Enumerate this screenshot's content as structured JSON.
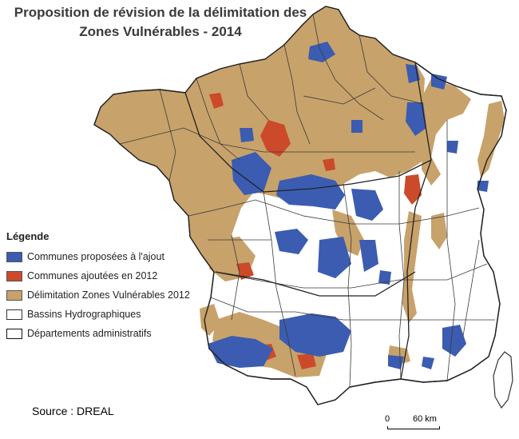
{
  "title": {
    "line1": "Proposition de révision de la délimitation des",
    "line2": "Zones Vulnérables - 2014"
  },
  "legend": {
    "title": "Légende",
    "items": [
      {
        "label": "Communes proposées à l'ajout",
        "color": "#3b5cb0",
        "style": "fill"
      },
      {
        "label": "Communes ajoutées en 2012",
        "color": "#cc4a2a",
        "style": "fill"
      },
      {
        "label": "Délimitation Zones Vulnérables 2012",
        "color": "#c8a26b",
        "style": "fill"
      },
      {
        "label": "Bassins Hydrographiques",
        "color": "#ffffff",
        "style": "outline"
      },
      {
        "label": "Départements administratifs",
        "color": "#ffffff",
        "style": "outline-thick"
      }
    ]
  },
  "source": "Source : DREAL",
  "scale": {
    "start": "0",
    "end": "60 km"
  },
  "colors": {
    "zv_2012": "#c8a26b",
    "added_2012": "#cc4a2a",
    "proposed": "#3b5cb0",
    "background": "#ffffff",
    "borders": "#333333"
  }
}
